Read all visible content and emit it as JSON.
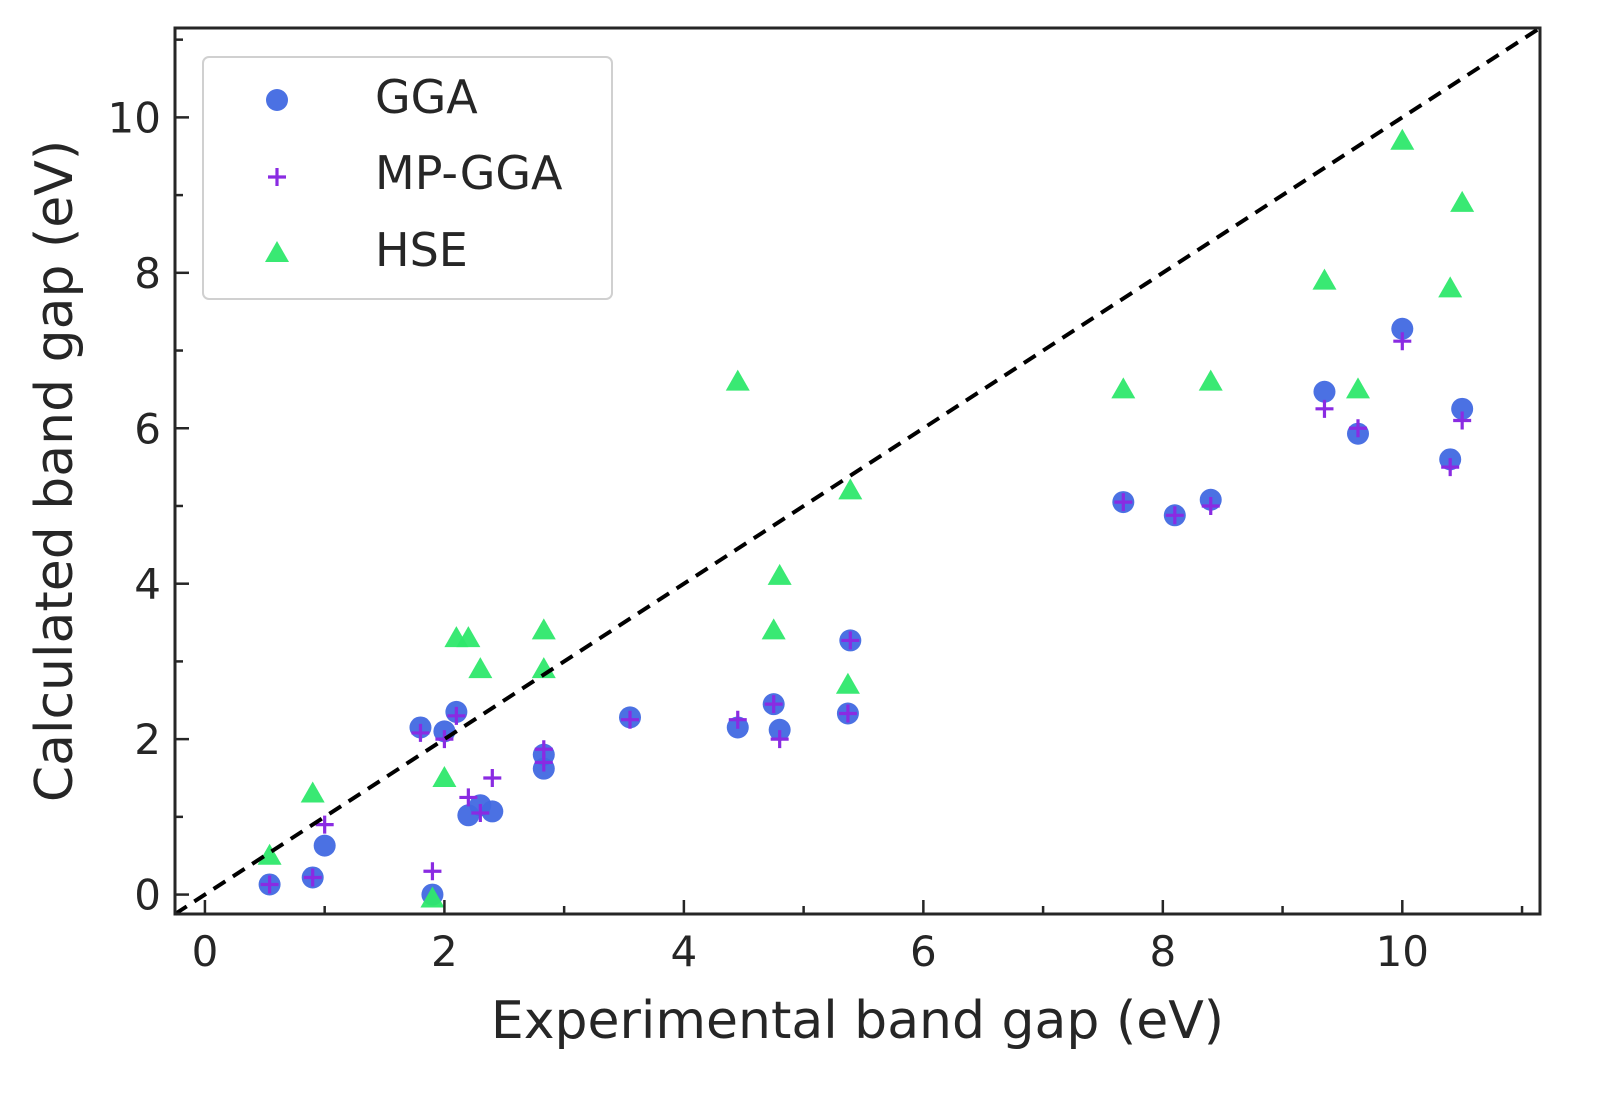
{
  "chart_data": {
    "type": "scatter",
    "title": "",
    "xlabel": "Experimental band gap (eV)",
    "ylabel": "Calculated band gap (eV)",
    "xlim": [
      -0.25,
      11.15
    ],
    "ylim": [
      -0.25,
      11.15
    ],
    "x_ticks": [
      0,
      2,
      4,
      6,
      8,
      10
    ],
    "y_ticks": [
      0,
      2,
      4,
      6,
      8,
      10
    ],
    "x_tick_labels": [
      "0",
      "2",
      "4",
      "6",
      "8",
      "10"
    ],
    "y_tick_labels": [
      "0",
      "2",
      "4",
      "6",
      "8",
      "10"
    ],
    "grid": false,
    "legend_position": "top-left",
    "reference_line": {
      "label": "y = x",
      "style": "dashed",
      "color": "#000000"
    },
    "series": [
      {
        "name": "GGA",
        "marker": "circle",
        "color": "#4169E1",
        "x": [
          0.54,
          0.9,
          1.0,
          1.8,
          1.9,
          2.0,
          2.1,
          2.2,
          2.3,
          2.4,
          2.83,
          2.83,
          3.55,
          4.45,
          4.75,
          4.8,
          5.37,
          5.39,
          7.67,
          8.1,
          8.4,
          9.35,
          9.63,
          10.0,
          10.4,
          10.5
        ],
        "y": [
          0.13,
          0.22,
          0.63,
          2.15,
          0.0,
          2.1,
          2.35,
          1.02,
          1.15,
          1.07,
          1.62,
          1.8,
          2.28,
          2.15,
          2.45,
          2.12,
          2.33,
          3.27,
          5.05,
          4.88,
          5.08,
          6.47,
          5.93,
          7.28,
          5.6,
          6.25
        ]
      },
      {
        "name": "MP-GGA",
        "marker": "plus",
        "color": "#8A2BE2",
        "x": [
          0.54,
          0.9,
          1.0,
          1.8,
          1.9,
          2.0,
          2.1,
          2.2,
          2.3,
          2.4,
          2.83,
          2.83,
          3.55,
          4.45,
          4.75,
          4.8,
          5.37,
          5.39,
          7.67,
          8.1,
          8.4,
          9.35,
          9.63,
          10.0,
          10.4,
          10.5
        ],
        "y": [
          0.13,
          0.22,
          0.9,
          2.08,
          0.3,
          2.0,
          2.3,
          1.25,
          1.05,
          1.5,
          1.7,
          1.87,
          2.25,
          2.25,
          2.45,
          2.0,
          2.33,
          3.27,
          5.05,
          4.88,
          5.0,
          6.25,
          6.0,
          7.12,
          5.5,
          6.1
        ]
      },
      {
        "name": "HSE",
        "marker": "triangle",
        "color": "#2EE86B",
        "x": [
          0.54,
          0.9,
          1.9,
          2.0,
          2.1,
          2.2,
          2.3,
          2.83,
          2.83,
          4.45,
          4.75,
          4.8,
          5.37,
          5.39,
          7.67,
          8.4,
          9.35,
          9.63,
          10.0,
          10.4,
          10.5
        ],
        "y": [
          0.5,
          1.3,
          -0.05,
          1.5,
          3.3,
          3.3,
          2.9,
          3.4,
          2.9,
          6.6,
          3.4,
          4.1,
          2.7,
          5.2,
          6.5,
          6.6,
          7.9,
          6.5,
          9.7,
          7.8,
          8.9
        ]
      }
    ]
  }
}
